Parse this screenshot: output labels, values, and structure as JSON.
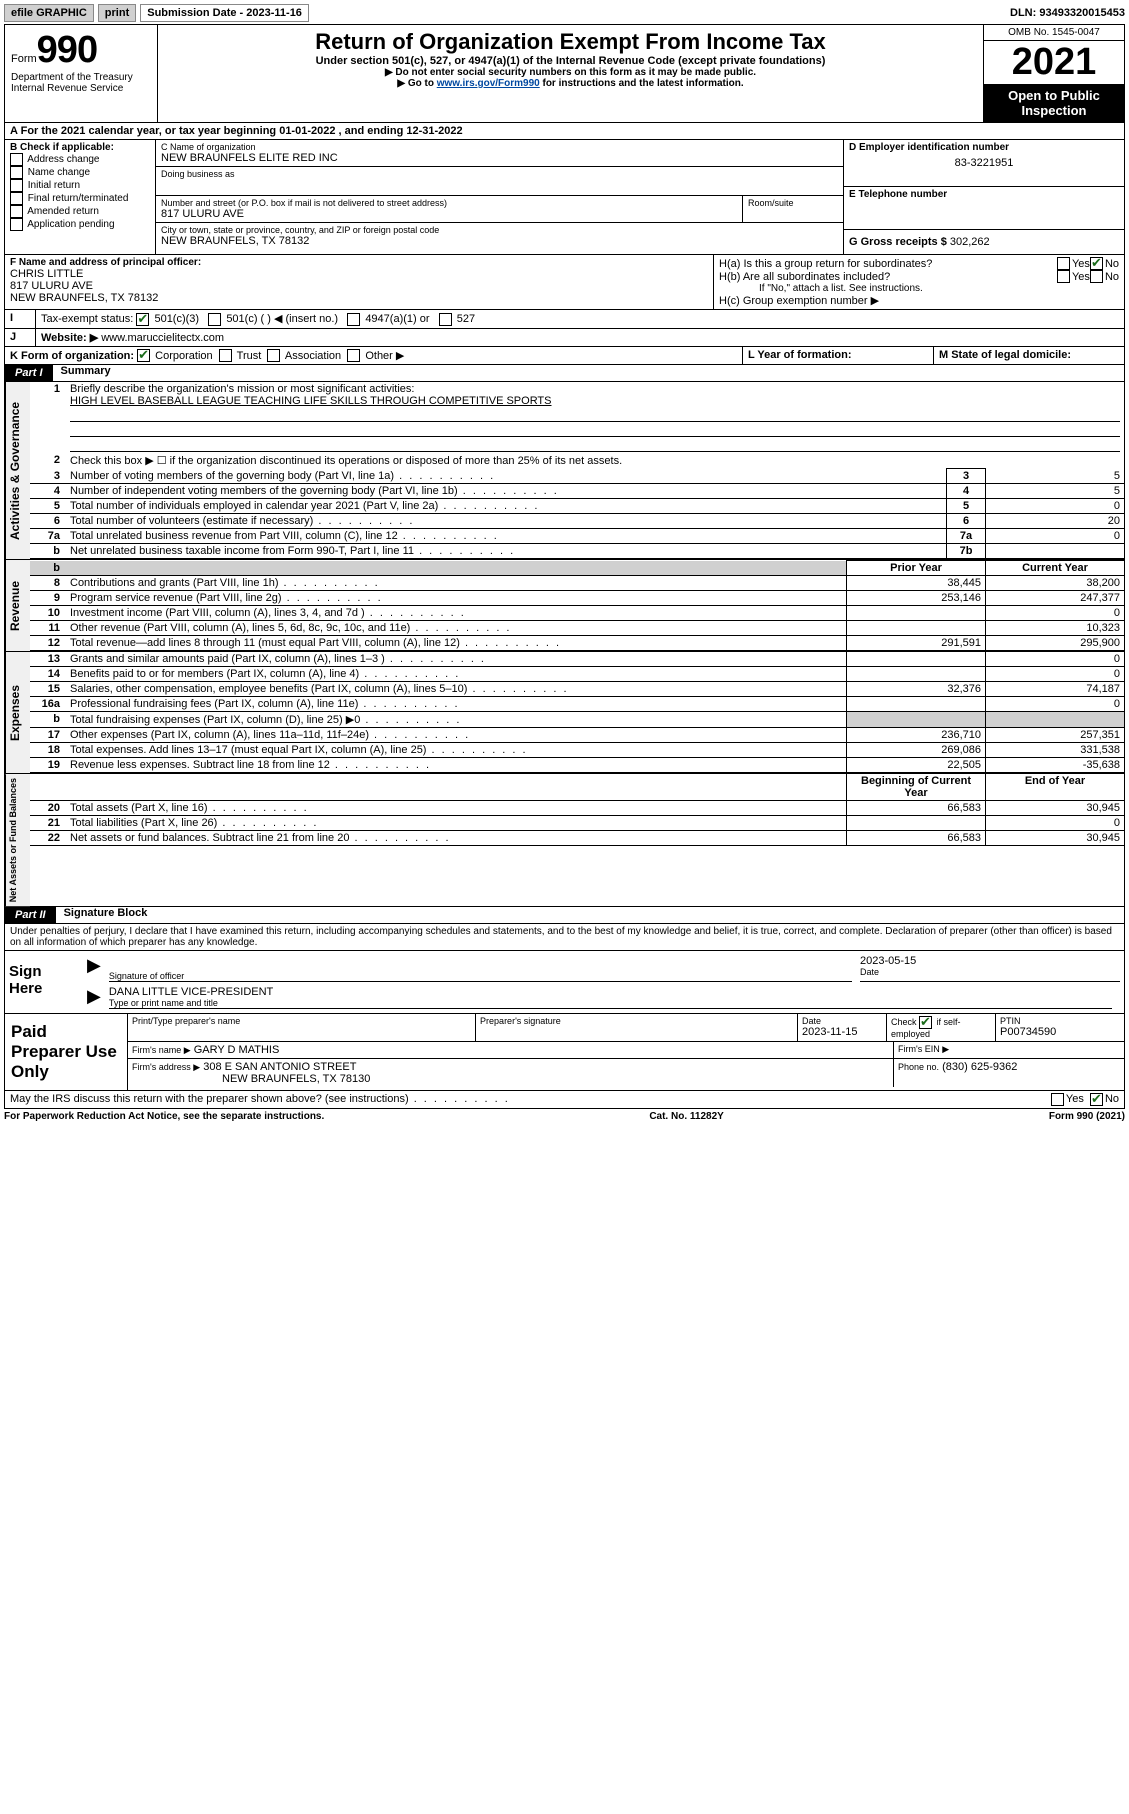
{
  "topbar": {
    "efile": "efile GRAPHIC",
    "print": "print",
    "sub_label": "Submission Date - 2023-11-16",
    "dln": "DLN: 93493320015453"
  },
  "header": {
    "form_word": "Form",
    "form_num": "990",
    "title": "Return of Organization Exempt From Income Tax",
    "subtitle": "Under section 501(c), 527, or 4947(a)(1) of the Internal Revenue Code (except private foundations)",
    "instr1": "▶ Do not enter social security numbers on this form as it may be made public.",
    "instr2_pre": "▶ Go to ",
    "instr2_link": "www.irs.gov/Form990",
    "instr2_post": " for instructions and the latest information.",
    "dept": "Department of the Treasury",
    "irs": "Internal Revenue Service",
    "omb": "OMB No. 1545-0047",
    "year": "2021",
    "open": "Open to Public Inspection"
  },
  "A": {
    "text": "For the 2021 calendar year, or tax year beginning 01-01-2022   , and ending 12-31-2022"
  },
  "B": {
    "label": "B Check if applicable:",
    "opts": [
      "Address change",
      "Name change",
      "Initial return",
      "Final return/terminated",
      "Amended return",
      "Application pending"
    ]
  },
  "C": {
    "name_lbl": "C Name of organization",
    "name": "NEW BRAUNFELS ELITE RED INC",
    "dba_lbl": "Doing business as",
    "addr_lbl": "Number and street (or P.O. box if mail is not delivered to street address)",
    "room_lbl": "Room/suite",
    "addr": "817 ULURU AVE",
    "city_lbl": "City or town, state or province, country, and ZIP or foreign postal code",
    "city": "NEW BRAUNFELS, TX  78132"
  },
  "D": {
    "lbl": "D Employer identification number",
    "val": "83-3221951"
  },
  "E": {
    "lbl": "E Telephone number",
    "val": ""
  },
  "G": {
    "lbl": "G Gross receipts $",
    "val": "302,262"
  },
  "F": {
    "lbl": "F Name and address of principal officer:",
    "name": "CHRIS LITTLE",
    "addr1": "817 ULURU AVE",
    "addr2": "NEW BRAUNFELS, TX  78132"
  },
  "H": {
    "a": "H(a)  Is this a group return for subordinates?",
    "b": "H(b)  Are all subordinates included?",
    "b_note": "If \"No,\" attach a list. See instructions.",
    "c": "H(c)  Group exemption number ▶"
  },
  "I": {
    "lbl": "Tax-exempt status:",
    "opts": [
      "501(c)(3)",
      "501(c) (  ) ◀ (insert no.)",
      "4947(a)(1) or",
      "527"
    ]
  },
  "J": {
    "lbl": "Website: ▶",
    "val": "www.maruccielitectx.com"
  },
  "K": {
    "lbl": "K Form of organization:",
    "opts": [
      "Corporation",
      "Trust",
      "Association",
      "Other ▶"
    ]
  },
  "L": {
    "lbl": "L Year of formation:",
    "val": ""
  },
  "M": {
    "lbl": "M State of legal domicile:",
    "val": ""
  },
  "part1": {
    "hdr": "Part I",
    "title": "Summary",
    "line1_lbl": "Briefly describe the organization's mission or most significant activities:",
    "line1_val": "HIGH LEVEL BASEBALL LEAGUE TEACHING LIFE SKILLS THROUGH COMPETITIVE SPORTS",
    "line2": "Check this box ▶ ☐  if the organization discontinued its operations or disposed of more than 25% of its net assets.",
    "rows_gov": [
      {
        "n": "3",
        "t": "Number of voting members of the governing body (Part VI, line 1a)",
        "box": "3",
        "v": "5"
      },
      {
        "n": "4",
        "t": "Number of independent voting members of the governing body (Part VI, line 1b)",
        "box": "4",
        "v": "5"
      },
      {
        "n": "5",
        "t": "Total number of individuals employed in calendar year 2021 (Part V, line 2a)",
        "box": "5",
        "v": "0"
      },
      {
        "n": "6",
        "t": "Total number of volunteers (estimate if necessary)",
        "box": "6",
        "v": "20"
      },
      {
        "n": "7a",
        "t": "Total unrelated business revenue from Part VIII, column (C), line 12",
        "box": "7a",
        "v": "0"
      },
      {
        "n": "b",
        "t": "Net unrelated business taxable income from Form 990-T, Part I, line 11",
        "box": "7b",
        "v": ""
      }
    ],
    "col_prior": "Prior Year",
    "col_curr": "Current Year",
    "rows_rev": [
      {
        "n": "8",
        "t": "Contributions and grants (Part VIII, line 1h)",
        "p": "38,445",
        "c": "38,200"
      },
      {
        "n": "9",
        "t": "Program service revenue (Part VIII, line 2g)",
        "p": "253,146",
        "c": "247,377"
      },
      {
        "n": "10",
        "t": "Investment income (Part VIII, column (A), lines 3, 4, and 7d )",
        "p": "",
        "c": "0"
      },
      {
        "n": "11",
        "t": "Other revenue (Part VIII, column (A), lines 5, 6d, 8c, 9c, 10c, and 11e)",
        "p": "",
        "c": "10,323"
      },
      {
        "n": "12",
        "t": "Total revenue—add lines 8 through 11 (must equal Part VIII, column (A), line 12)",
        "p": "291,591",
        "c": "295,900"
      }
    ],
    "rows_exp": [
      {
        "n": "13",
        "t": "Grants and similar amounts paid (Part IX, column (A), lines 1–3 )",
        "p": "",
        "c": "0"
      },
      {
        "n": "14",
        "t": "Benefits paid to or for members (Part IX, column (A), line 4)",
        "p": "",
        "c": "0"
      },
      {
        "n": "15",
        "t": "Salaries, other compensation, employee benefits (Part IX, column (A), lines 5–10)",
        "p": "32,376",
        "c": "74,187"
      },
      {
        "n": "16a",
        "t": "Professional fundraising fees (Part IX, column (A), line 11e)",
        "p": "",
        "c": "0"
      },
      {
        "n": "b",
        "t": "Total fundraising expenses (Part IX, column (D), line 25) ▶0",
        "p": "SHADE",
        "c": "SHADE"
      },
      {
        "n": "17",
        "t": "Other expenses (Part IX, column (A), lines 11a–11d, 11f–24e)",
        "p": "236,710",
        "c": "257,351"
      },
      {
        "n": "18",
        "t": "Total expenses. Add lines 13–17 (must equal Part IX, column (A), line 25)",
        "p": "269,086",
        "c": "331,538"
      },
      {
        "n": "19",
        "t": "Revenue less expenses. Subtract line 18 from line 12",
        "p": "22,505",
        "c": "-35,638"
      }
    ],
    "col_beg": "Beginning of Current Year",
    "col_end": "End of Year",
    "rows_na": [
      {
        "n": "20",
        "t": "Total assets (Part X, line 16)",
        "p": "66,583",
        "c": "30,945"
      },
      {
        "n": "21",
        "t": "Total liabilities (Part X, line 26)",
        "p": "",
        "c": "0"
      },
      {
        "n": "22",
        "t": "Net assets or fund balances. Subtract line 21 from line 20",
        "p": "66,583",
        "c": "30,945"
      }
    ]
  },
  "part2": {
    "hdr": "Part II",
    "title": "Signature Block",
    "decl": "Under penalties of perjury, I declare that I have examined this return, including accompanying schedules and statements, and to the best of my knowledge and belief, it is true, correct, and complete. Declaration of preparer (other than officer) is based on all information of which preparer has any knowledge."
  },
  "sign": {
    "here": "Sign Here",
    "sig_lbl": "Signature of officer",
    "date_lbl": "Date",
    "date_val": "2023-05-15",
    "name": "DANA LITTLE  VICE-PRESIDENT",
    "name_lbl": "Type or print name and title"
  },
  "paid": {
    "title": "Paid Preparer Use Only",
    "h1": "Print/Type preparer's name",
    "h2": "Preparer's signature",
    "h3": "Date",
    "h3v": "2023-11-15",
    "h4a": "Check",
    "h4b": "if self-employed",
    "h5": "PTIN",
    "h5v": "P00734590",
    "firm_lbl": "Firm's name    ▶",
    "firm": "GARY D MATHIS",
    "ein_lbl": "Firm's EIN ▶",
    "addr_lbl": "Firm's address ▶",
    "addr1": "308 E SAN ANTONIO STREET",
    "addr2": "NEW BRAUNFELS, TX  78130",
    "phone_lbl": "Phone no.",
    "phone": "(830) 625-9362"
  },
  "may": "May the IRS discuss this return with the preparer shown above? (see instructions)",
  "footer": {
    "l": "For Paperwork Reduction Act Notice, see the separate instructions.",
    "c": "Cat. No. 11282Y",
    "r": "Form 990 (2021)"
  }
}
